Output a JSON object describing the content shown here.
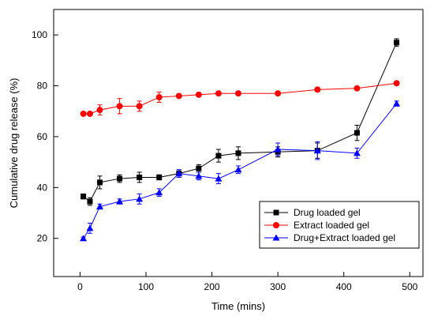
{
  "chart_data": {
    "type": "line",
    "xlabel": "Time (mins)",
    "ylabel": "Cumulative drug release (%)",
    "xlim": [
      -40,
      520
    ],
    "ylim": [
      5,
      110
    ],
    "xticks": [
      0,
      100,
      200,
      300,
      400,
      500
    ],
    "yticks": [
      20,
      40,
      60,
      80,
      100
    ],
    "grid": false,
    "legend_position": "bottom-right",
    "series": [
      {
        "name": "Drug loaded gel",
        "color": "#000000",
        "marker": "square",
        "x": [
          5,
          15,
          30,
          60,
          90,
          120,
          150,
          180,
          210,
          240,
          300,
          360,
          420,
          480
        ],
        "y": [
          36.5,
          34.5,
          42,
          43.5,
          44,
          44,
          45.5,
          47.5,
          52.5,
          53.5,
          54,
          54.5,
          61.5,
          97
        ],
        "err": [
          1.0,
          1.5,
          2.5,
          1.5,
          2.0,
          1.0,
          1.5,
          1.5,
          2.5,
          2.5,
          2.0,
          3.0,
          3.0,
          1.5
        ]
      },
      {
        "name": "Extract loaded gel",
        "color": "#ff0000",
        "marker": "circle",
        "x": [
          5,
          15,
          30,
          60,
          90,
          120,
          150,
          180,
          210,
          240,
          300,
          360,
          420,
          480
        ],
        "y": [
          69,
          69,
          70.5,
          72,
          72,
          75.5,
          76,
          76.5,
          77,
          77,
          77,
          78.5,
          79,
          81
        ],
        "err": [
          0.5,
          0.5,
          2.0,
          3.0,
          2.0,
          2.0,
          0.5,
          0.5,
          0.5,
          0.5,
          0.5,
          0.5,
          0.5,
          0.5
        ]
      },
      {
        "name": "Drug+Extract loaded gel",
        "color": "#0000ff",
        "marker": "triangle",
        "x": [
          5,
          15,
          30,
          60,
          90,
          120,
          150,
          180,
          210,
          240,
          300,
          360,
          420,
          480
        ],
        "y": [
          20,
          24,
          32.5,
          34.5,
          35.5,
          38,
          45.5,
          44.5,
          43.5,
          47,
          55,
          54.5,
          53.5,
          73
        ],
        "err": [
          0.5,
          2.0,
          1.0,
          1.0,
          2.0,
          1.5,
          1.5,
          1.5,
          2.0,
          1.5,
          2.5,
          3.5,
          2.0,
          1.0
        ]
      }
    ]
  }
}
